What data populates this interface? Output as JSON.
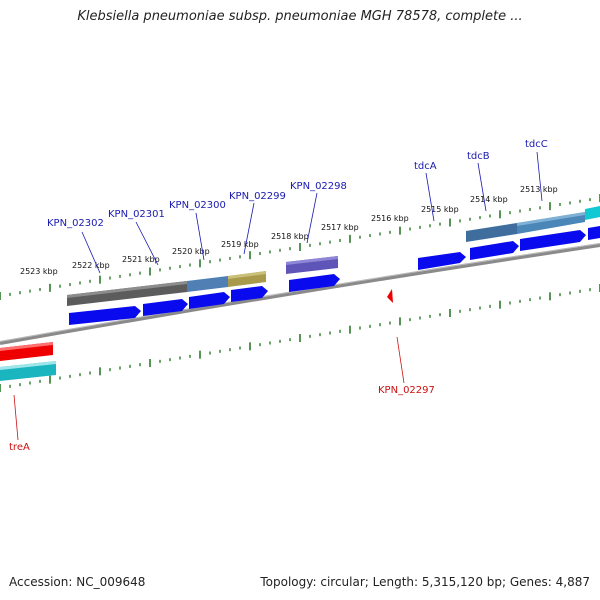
{
  "title": "Klebsiella pneumoniae subsp. pneumoniae MGH 78578, complete ...",
  "footer": {
    "accession": "Accession: NC_009648",
    "topology": "Topology: circular; Length: 5,315,120 bp; Genes: 4,887"
  },
  "colors": {
    "forward_label": "#1a1ab0",
    "reverse_label": "#cc1111",
    "tick": "#2a7a2a",
    "backbone": "#808080",
    "cds": "#0a0aee"
  },
  "scale_labels": [
    {
      "label": "2523 kbp"
    },
    {
      "label": "2522 kbp"
    },
    {
      "label": "2521 kbp"
    },
    {
      "label": "2520 kbp"
    },
    {
      "label": "2519 kbp"
    },
    {
      "label": "2518 kbp"
    },
    {
      "label": "2517 kbp"
    },
    {
      "label": "2516 kbp"
    },
    {
      "label": "2515 kbp"
    },
    {
      "label": "2514 kbp"
    },
    {
      "label": "2513 kbp"
    }
  ],
  "forward_genes": [
    {
      "name": "KPN_02302"
    },
    {
      "name": "KPN_02301"
    },
    {
      "name": "KPN_02300"
    },
    {
      "name": "KPN_02299"
    },
    {
      "name": "KPN_02298"
    },
    {
      "name": "tdcA"
    },
    {
      "name": "tdcB"
    },
    {
      "name": "tdcC"
    }
  ],
  "reverse_genes": [
    {
      "name": "KPN_02297"
    },
    {
      "name": "treA"
    }
  ]
}
